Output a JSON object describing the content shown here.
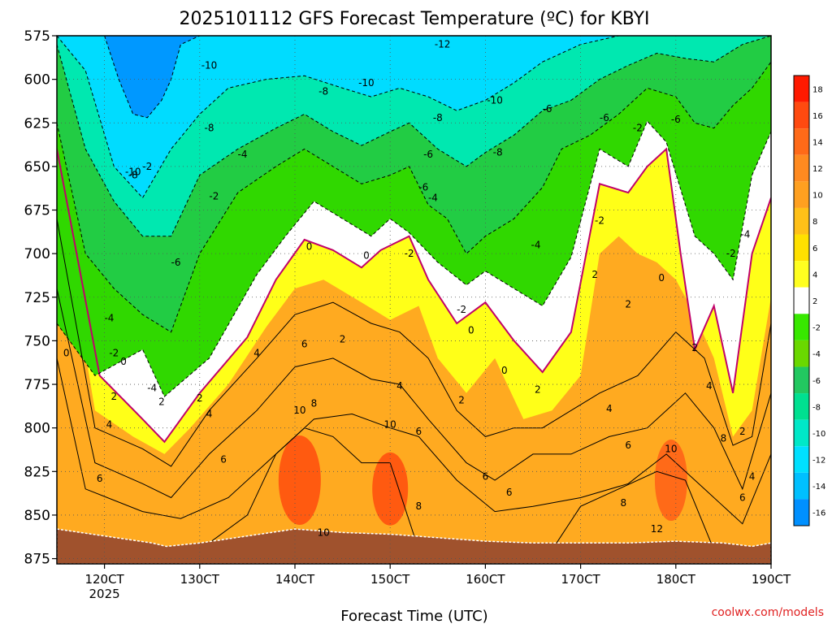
{
  "chart_data": {
    "type": "heatmap",
    "title": "2025101112 GFS Forecast Temperature (ºC) for KBYI",
    "xlabel": "Forecast Time (UTC)",
    "ylabel": "",
    "y_axis": {
      "ticks": [
        "575",
        "600",
        "625",
        "650",
        "675",
        "700",
        "725",
        "750",
        "775",
        "800",
        "825",
        "850",
        "875"
      ],
      "range": [
        575,
        878
      ]
    },
    "x_axis": {
      "ticks": [
        "120CT",
        "130CT",
        "140CT",
        "150CT",
        "160CT",
        "170CT",
        "180CT",
        "190CT"
      ],
      "first_tick_sublabel": "2025",
      "range": [
        115,
        190
      ]
    },
    "colorbar": {
      "labels": [
        "18",
        "16",
        "14",
        "12",
        "10",
        "8",
        "6",
        "4",
        "2",
        "-2",
        "-4",
        "-6",
        "-8",
        "-10",
        "-12",
        "-14",
        "-16"
      ],
      "colors": [
        "#ff1a00",
        "#ff4a10",
        "#ff6a18",
        "#ff8a20",
        "#ffa020",
        "#ffc018",
        "#ffe000",
        "#ffff20",
        "#ffffff",
        "#38e800",
        "#6ad800",
        "#22c860",
        "#00e090",
        "#00e8c8",
        "#00e0ff",
        "#00c0ff",
        "#0090ff"
      ]
    },
    "contour_labels": [
      "-12",
      "-10",
      "-10",
      "-10",
      "-10",
      "-8",
      "-8",
      "-8",
      "-8",
      "-8",
      "-6",
      "-6",
      "-6",
      "-6",
      "-6",
      "-6",
      "-4",
      "-4",
      "-4",
      "-4",
      "-4",
      "-4",
      "-2",
      "-2",
      "-2",
      "-2",
      "-2",
      "-2",
      "-2",
      "-2",
      "0",
      "0",
      "0",
      "0",
      "0",
      "0",
      "0",
      "2",
      "2",
      "2",
      "2",
      "2",
      "2",
      "2",
      "2",
      "2",
      "2",
      "4",
      "4",
      "4",
      "4",
      "4",
      "4",
      "4",
      "6",
      "6",
      "6",
      "6",
      "6",
      "6",
      "6",
      "6",
      "8",
      "8",
      "8",
      "8",
      "10",
      "10",
      "10",
      "10",
      "12"
    ],
    "series": [
      {
        "name": "0",
        "x": [
          115,
          119.5,
          124,
          126.3,
          130,
          135,
          138,
          141,
          144,
          147,
          149,
          152,
          154,
          157,
          160,
          163,
          166,
          169,
          172,
          175,
          177,
          179,
          180.5,
          182,
          184,
          186,
          188,
          190
        ],
        "y": [
          640,
          770,
          795,
          808,
          780,
          748,
          715,
          692,
          698,
          708,
          698,
          690,
          715,
          740,
          728,
          750,
          768,
          745,
          660,
          665,
          650,
          640,
          700,
          755,
          730,
          780,
          700,
          668
        ]
      },
      {
        "name": "-2",
        "x": [
          115,
          119,
          124,
          126.3,
          131,
          136,
          139,
          142,
          145,
          148,
          150,
          152,
          155,
          158,
          160,
          163,
          166,
          169,
          172,
          175,
          177,
          179,
          182,
          184,
          186,
          188,
          190
        ],
        "y": [
          740,
          770,
          755,
          782,
          760,
          712,
          690,
          670,
          680,
          690,
          680,
          688,
          705,
          718,
          710,
          720,
          730,
          702,
          640,
          650,
          624,
          636,
          690,
          700,
          715,
          655,
          630
        ]
      }
    ]
  },
  "credit": "coolwx.com/models"
}
